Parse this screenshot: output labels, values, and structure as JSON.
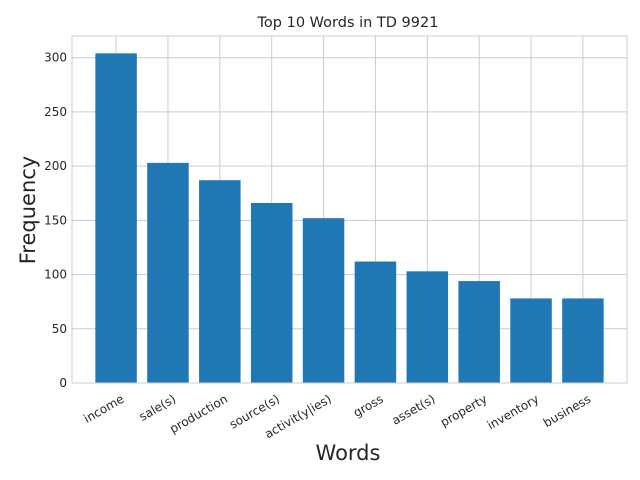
{
  "chart_data": {
    "type": "bar",
    "title": "Top 10 Words in TD 9921",
    "xlabel": "Words",
    "ylabel": "Frequency",
    "categories": [
      "income",
      "sale(s)",
      "production",
      "source(s)",
      "activit(y|ies)",
      "gross",
      "asset(s)",
      "property",
      "inventory",
      "business"
    ],
    "values": [
      304,
      203,
      187,
      166,
      152,
      112,
      103,
      94,
      78,
      78
    ],
    "ylim": [
      0,
      320
    ],
    "yticks": [
      0,
      50,
      100,
      150,
      200,
      250,
      300
    ],
    "grid": true,
    "bar_color": "#1f77b4",
    "grid_color": "#cccccc",
    "legend": "none"
  }
}
